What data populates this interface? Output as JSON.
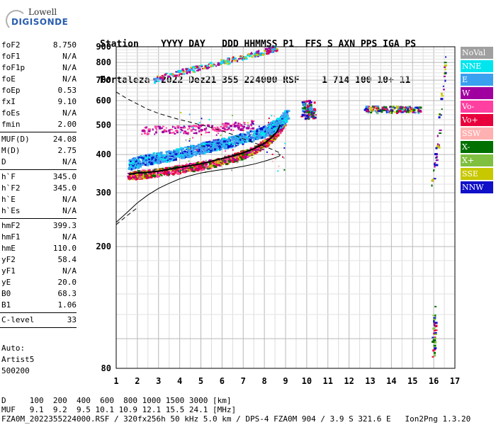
{
  "logo": {
    "line1": "Lowell",
    "line2": "DIGISONDE"
  },
  "header": {
    "labels": "Station    YYYY DAY   DDD HHMMSS P1  FFS S AXN PPS IGA PS",
    "values": "Fortaleza  2022 Dez21 355 224000 RSF    1 714 100 10+ 11"
  },
  "params": [
    {
      "label": "foF2",
      "value": "8.750"
    },
    {
      "label": "foF1",
      "value": "N/A"
    },
    {
      "label": "foF1p",
      "value": "N/A"
    },
    {
      "label": "foE",
      "value": "N/A"
    },
    {
      "label": "foEp",
      "value": "0.53"
    },
    {
      "label": "fxI",
      "value": "9.10"
    },
    {
      "label": "foEs",
      "value": "N/A"
    },
    {
      "label": "fmin",
      "value": "2.00"
    },
    {
      "sep": true
    },
    {
      "label": "MUF(D)",
      "value": "24.08"
    },
    {
      "label": "M(D)",
      "value": "2.75"
    },
    {
      "label": "D",
      "value": "N/A"
    },
    {
      "sep": true
    },
    {
      "label": "h`F",
      "value": "345.0"
    },
    {
      "label": "h`F2",
      "value": "345.0"
    },
    {
      "label": "h`E",
      "value": "N/A"
    },
    {
      "label": "h`Es",
      "value": "N/A"
    },
    {
      "sep": true
    },
    {
      "label": "hmF2",
      "value": "399.3"
    },
    {
      "label": "hmF1",
      "value": "N/A"
    },
    {
      "label": "hmE",
      "value": "110.0"
    },
    {
      "label": "yF2",
      "value": "58.4"
    },
    {
      "label": "yF1",
      "value": "N/A"
    },
    {
      "label": "yE",
      "value": "20.0"
    },
    {
      "label": "B0",
      "value": "68.3"
    },
    {
      "label": "B1",
      "value": "1.06"
    },
    {
      "sep": true
    },
    {
      "label": "C-level",
      "value": "33"
    },
    {
      "sep": true
    }
  ],
  "auto": {
    "line1": "Auto:",
    "line2": "Artist5",
    "line3": "500200"
  },
  "legend": [
    {
      "name": "NoVal",
      "color": "#a0a0a0"
    },
    {
      "name": "NNE",
      "color": "#00e5ee"
    },
    {
      "name": "E",
      "color": "#3aa0f0"
    },
    {
      "name": "W",
      "color": "#a000a0"
    },
    {
      "name": "Vo-",
      "color": "#ff40a0"
    },
    {
      "name": "Vo+",
      "color": "#e8003c"
    },
    {
      "name": "SSW",
      "color": "#ffb0b0"
    },
    {
      "name": "X-",
      "color": "#007000"
    },
    {
      "name": "X+",
      "color": "#80c040"
    },
    {
      "name": "SSE",
      "color": "#c8c800"
    },
    {
      "name": "NNW",
      "color": "#1010c8"
    }
  ],
  "footer": {
    "line1": "D     100  200  400  600  800 1000 1500 3000 [km]",
    "line2": "MUF   9.1  9.2  9.5 10.1 10.9 12.1 15.5 24.1 [MHz]",
    "line3": "FZA0M_2022355224000.RSF / 320fx256h 50 kHz 5.0 km / DPS-4 FZA0M 904 / 3.9 S 321.6 E   Ion2Png 1.3.20"
  },
  "chart_data": {
    "type": "scatter",
    "title": "",
    "xlabel": "",
    "ylabel": "",
    "xlim": [
      1,
      17
    ],
    "ylim": [
      80,
      900
    ],
    "y_scale": "log",
    "x_ticks": [
      1,
      2,
      3,
      4,
      5,
      6,
      7,
      8,
      9,
      10,
      11,
      12,
      13,
      14,
      15,
      16,
      17
    ],
    "y_ticks": [
      80,
      200,
      300,
      400,
      500,
      600,
      700,
      800,
      900
    ],
    "grid": true,
    "o_trace": [
      [
        1.6,
        345
      ],
      [
        2.0,
        348
      ],
      [
        2.5,
        350
      ],
      [
        3.0,
        353
      ],
      [
        3.5,
        358
      ],
      [
        4.0,
        363
      ],
      [
        4.5,
        368
      ],
      [
        5.0,
        373
      ],
      [
        5.5,
        380
      ],
      [
        6.0,
        388
      ],
      [
        6.5,
        396
      ],
      [
        7.0,
        405
      ],
      [
        7.5,
        418
      ],
      [
        8.0,
        435
      ],
      [
        8.3,
        452
      ],
      [
        8.6,
        475
      ],
      [
        8.75,
        500
      ]
    ],
    "profile": [
      [
        1.0,
        240
      ],
      [
        1.5,
        258
      ],
      [
        2.0,
        278
      ],
      [
        2.5,
        295
      ],
      [
        3.0,
        310
      ],
      [
        3.5,
        322
      ],
      [
        4.0,
        333
      ],
      [
        4.5,
        341
      ],
      [
        5.0,
        348
      ],
      [
        5.5,
        353
      ],
      [
        6.0,
        357
      ],
      [
        6.5,
        361
      ],
      [
        7.0,
        366
      ],
      [
        7.5,
        372
      ],
      [
        8.0,
        380
      ],
      [
        8.4,
        388
      ],
      [
        8.7,
        395
      ],
      [
        8.75,
        399
      ],
      [
        8.65,
        402
      ]
    ],
    "profile_top": [
      [
        1.0,
        640
      ],
      [
        1.5,
        610
      ],
      [
        2.0,
        585
      ],
      [
        2.5,
        562
      ],
      [
        3.0,
        545
      ],
      [
        3.5,
        532
      ],
      [
        4.0,
        520
      ],
      [
        4.5,
        510
      ],
      [
        5.0,
        500
      ],
      [
        5.5,
        490
      ],
      [
        6.0,
        478
      ],
      [
        6.5,
        465
      ],
      [
        7.0,
        450
      ],
      [
        7.5,
        437
      ],
      [
        8.0,
        425
      ],
      [
        8.5,
        412
      ],
      [
        8.75,
        404
      ]
    ]
  }
}
